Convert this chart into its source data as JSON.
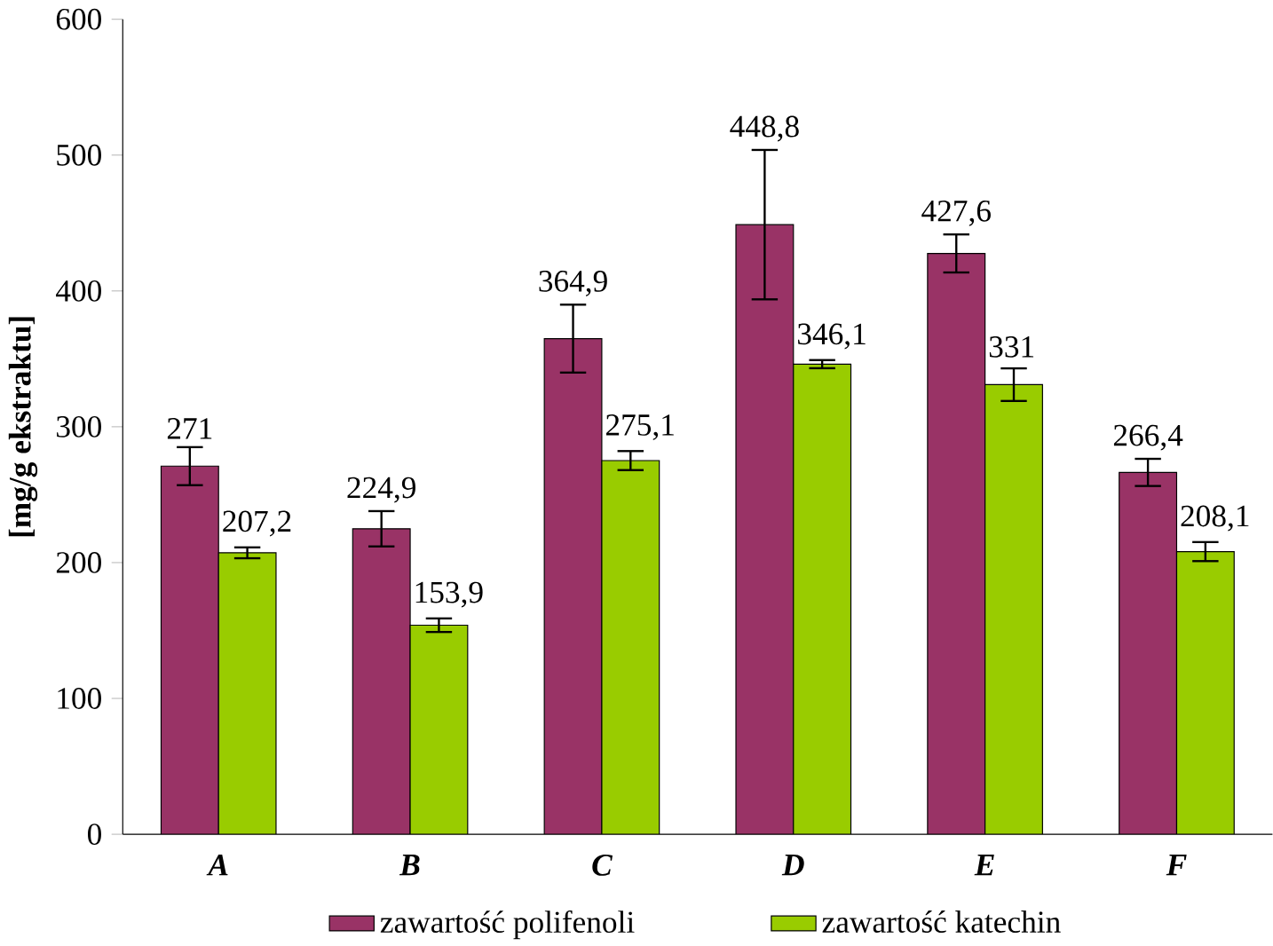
{
  "chart_data": {
    "type": "bar",
    "ylabel": "[mg/g ekstraktu]",
    "categories": [
      "A",
      "B",
      "C",
      "D",
      "E",
      "F"
    ],
    "series": [
      {
        "name": "zawartość polifenoli",
        "color": "#993366",
        "values": [
          271,
          224.9,
          364.9,
          448.8,
          427.6,
          266.4
        ],
        "errors": [
          14,
          13,
          25,
          55,
          14,
          10
        ],
        "value_labels": [
          "271",
          "224,9",
          "364,9",
          "448,8",
          "427,6",
          "266,4"
        ]
      },
      {
        "name": "zawartość katechin",
        "color": "#99cc00",
        "values": [
          207.2,
          153.9,
          275.1,
          346.1,
          331,
          208.1
        ],
        "errors": [
          4,
          5,
          7,
          3,
          12,
          7
        ],
        "value_labels": [
          "207,2",
          "153,9",
          "275,1",
          "346,1",
          "331",
          "208,1"
        ]
      }
    ],
    "ylim": [
      0,
      600
    ],
    "yticks": [
      0,
      100,
      200,
      300,
      400,
      500,
      600
    ],
    "grid": false,
    "legend": "bottom"
  }
}
